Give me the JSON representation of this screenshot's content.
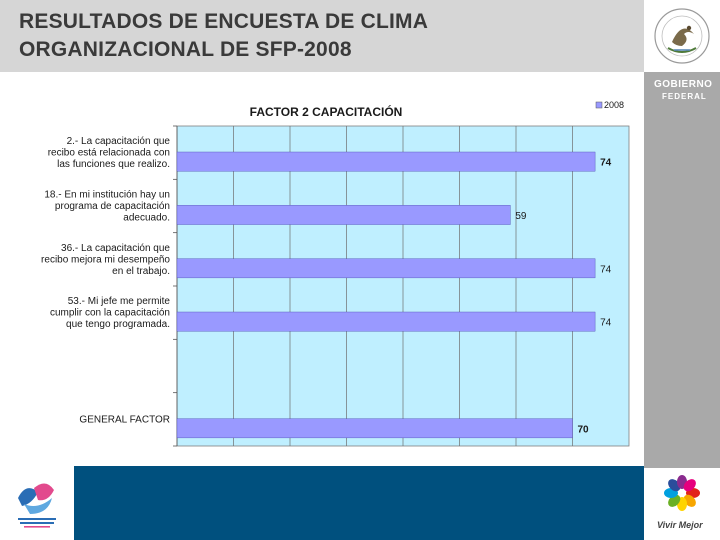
{
  "slide": {
    "title_line1": "RESULTADOS DE ENCUESTA DE CLIMA",
    "title_line2": "ORGANIZACIONAL DE SFP-2008"
  },
  "branding": {
    "gobierno_line1": "GOBIERNO",
    "gobierno_line2": "FEDERAL",
    "vivir_mejor": "Vivir Mejor",
    "seal_icon": "mexican-coat-of-arms-seal",
    "institute_logo": "instituto-nacional-de-las-mujeres-logo",
    "colors": {
      "title_band": "#d6d6d6",
      "right_panel": "#a9a9a9",
      "bottom_band": "#00507e",
      "bar_fill": "#9999ff",
      "plot_bg": "#bfefff"
    }
  },
  "chart_data": {
    "type": "bar",
    "orientation": "horizontal",
    "title": "FACTOR 2 CAPACITACIÓN",
    "categories": [
      [
        "2.- La capacitación que",
        "recibo está relacionada con",
        "las funciones que realizo."
      ],
      [
        "18.- En mi institución hay un",
        "programa de capacitación",
        "adecuado."
      ],
      [
        "36.- La capacitación que",
        "recibo mejora mi desempeño",
        "en el trabajo."
      ],
      [
        "53.- Mi jefe me permite",
        "cumplir con la capacitación",
        "que tengo programada."
      ],
      [
        ""
      ],
      [
        "GENERAL FACTOR"
      ]
    ],
    "series": [
      {
        "name": "2008",
        "values": [
          74,
          59,
          74,
          74,
          null,
          70
        ]
      }
    ],
    "data_labels": [
      "74",
      "59",
      "74",
      "74",
      "",
      "70"
    ],
    "xlim": [
      0,
      80
    ],
    "grid": true,
    "legend": "top-right"
  }
}
